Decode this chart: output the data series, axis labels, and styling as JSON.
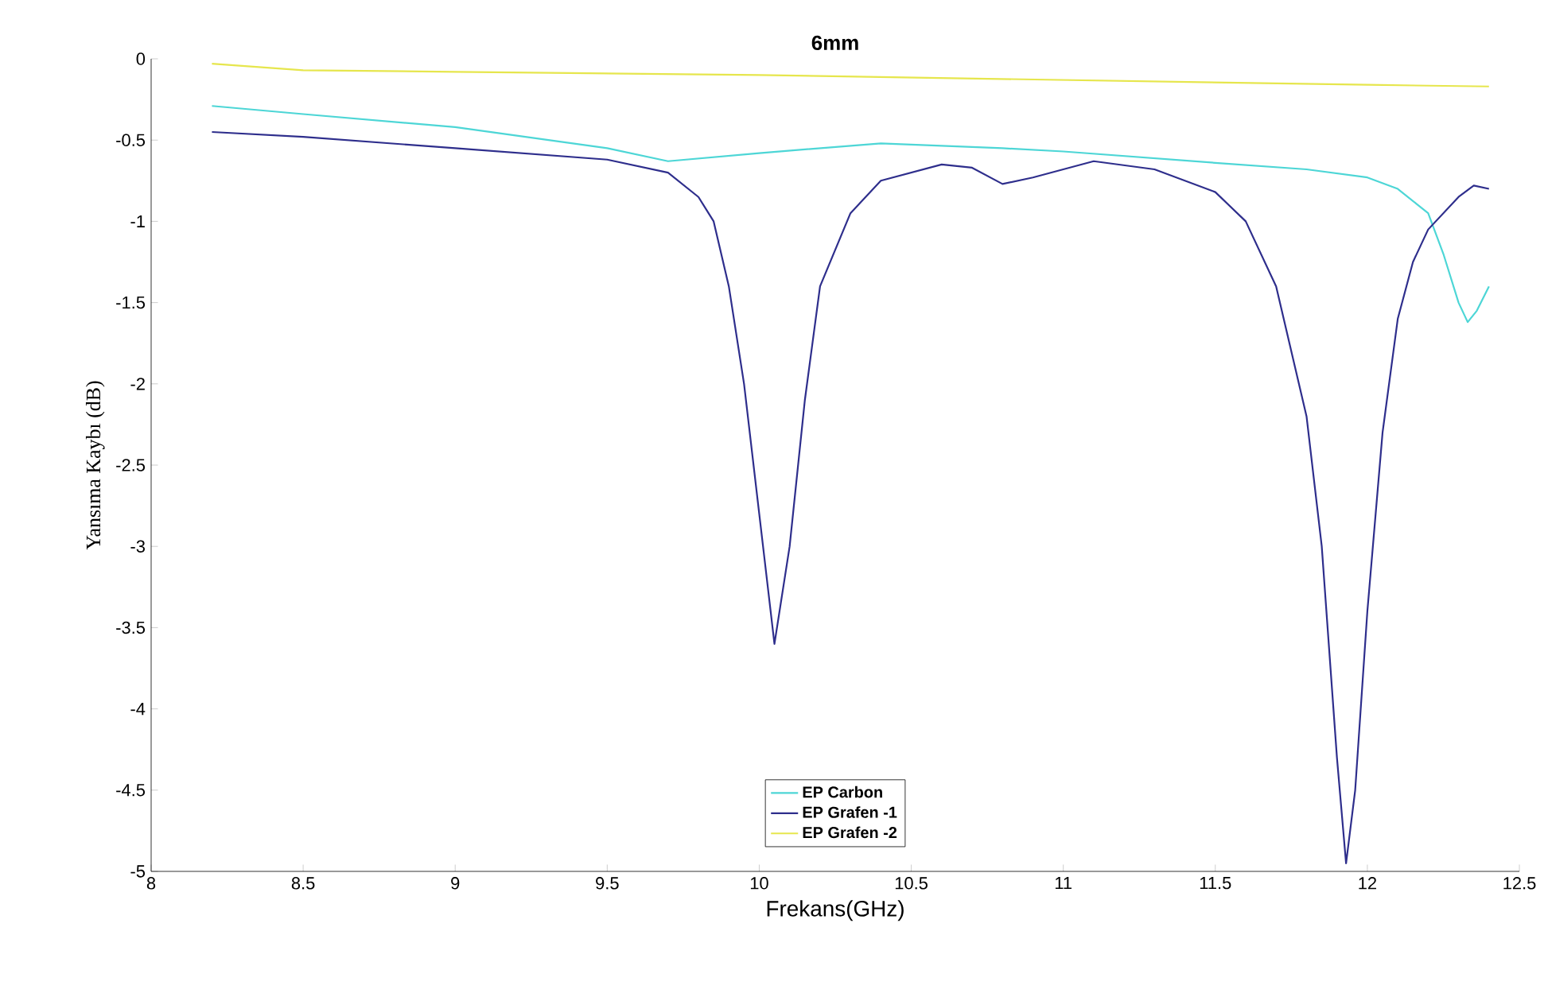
{
  "chart_data": {
    "type": "line",
    "title": "6mm",
    "xlabel": "Frekans(GHz)",
    "ylabel": "Yansıma Kaybı (dB)",
    "xlim": [
      8,
      12.5
    ],
    "xticks": [
      8,
      8.5,
      9,
      9.5,
      10,
      10.5,
      11,
      11.5,
      12,
      12.5
    ],
    "ylim": [
      -5,
      0
    ],
    "yticks": [
      -5,
      -4.5,
      -4,
      -3.5,
      -3,
      -2.5,
      -2,
      -1.5,
      -1,
      -0.5,
      0
    ],
    "legend": "bottom",
    "grid": false,
    "marker": "none",
    "line_style": "solid",
    "series": [
      {
        "name": "EP Carbon",
        "color": "#4dd6d6",
        "x": [
          8.2,
          8.5,
          9,
          9.5,
          9.7,
          10,
          10.4,
          10.8,
          11,
          11.5,
          11.8,
          12,
          12.1,
          12.2,
          12.25,
          12.3,
          12.33,
          12.36,
          12.4
        ],
        "values": [
          -0.29,
          -0.34,
          -0.42,
          -0.55,
          -0.63,
          -0.58,
          -0.52,
          -0.55,
          -0.57,
          -0.64,
          -0.68,
          -0.73,
          -0.8,
          -0.95,
          -1.2,
          -1.5,
          -1.62,
          -1.55,
          -1.4
        ]
      },
      {
        "name": "EP Grafen -1",
        "color": "#2e2e8c",
        "x": [
          8.2,
          8.5,
          9,
          9.5,
          9.7,
          9.8,
          9.85,
          9.9,
          9.95,
          10,
          10.05,
          10.1,
          10.15,
          10.2,
          10.3,
          10.4,
          10.6,
          10.7,
          10.8,
          10.9,
          11.1,
          11.3,
          11.5,
          11.6,
          11.7,
          11.8,
          11.85,
          11.9,
          11.93,
          11.96,
          12,
          12.05,
          12.1,
          12.15,
          12.2,
          12.3,
          12.35,
          12.4
        ],
        "values": [
          -0.45,
          -0.48,
          -0.55,
          -0.62,
          -0.7,
          -0.85,
          -1.0,
          -1.4,
          -2.0,
          -2.8,
          -3.6,
          -3.0,
          -2.1,
          -1.4,
          -0.95,
          -0.75,
          -0.65,
          -0.67,
          -0.77,
          -0.73,
          -0.63,
          -0.68,
          -0.82,
          -1.0,
          -1.4,
          -2.2,
          -3.0,
          -4.3,
          -4.95,
          -4.5,
          -3.4,
          -2.3,
          -1.6,
          -1.25,
          -1.05,
          -0.85,
          -0.78,
          -0.8
        ]
      },
      {
        "name": "EP Grafen -2",
        "color": "#e6e64d",
        "x": [
          8.2,
          8.5,
          9,
          10,
          11,
          12,
          12.4
        ],
        "values": [
          -0.03,
          -0.07,
          -0.08,
          -0.1,
          -0.13,
          -0.16,
          -0.17
        ]
      }
    ]
  }
}
